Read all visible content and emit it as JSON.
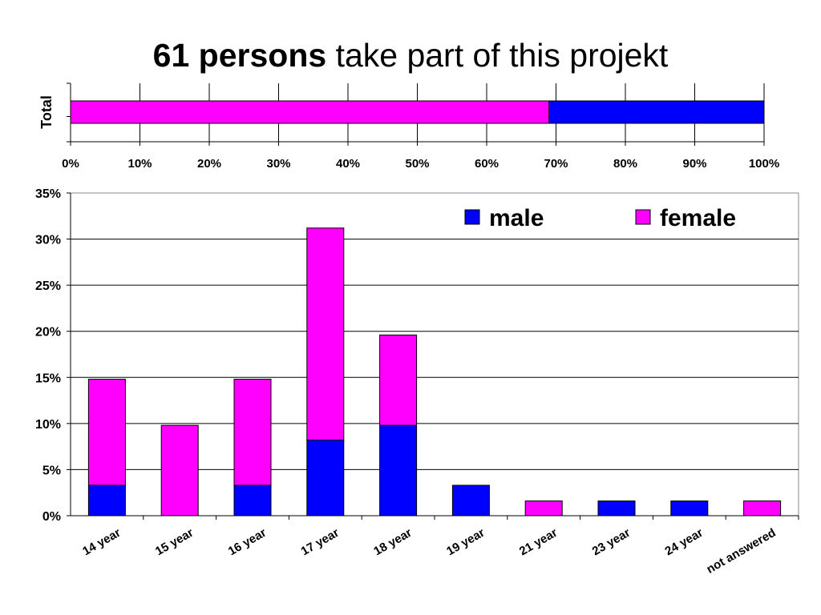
{
  "title": {
    "bold": "61 persons",
    "rest": " take part of this projekt"
  },
  "colors": {
    "male": "#0000ff",
    "female": "#ff00ff"
  },
  "chart_data": [
    {
      "type": "bar",
      "orientation": "horizontal",
      "stacked": true,
      "percent_stacked": true,
      "categories": [
        "Total"
      ],
      "ylabel": "Total",
      "xlim": [
        0,
        100
      ],
      "x_ticks": [
        "0%",
        "10%",
        "20%",
        "30%",
        "40%",
        "50%",
        "60%",
        "70%",
        "80%",
        "90%",
        "100%"
      ],
      "series": [
        {
          "name": "female",
          "values": [
            69
          ],
          "color": "#ff00ff"
        },
        {
          "name": "male",
          "values": [
            31
          ],
          "color": "#0000ff"
        }
      ],
      "grid": true
    },
    {
      "type": "bar",
      "stacked": true,
      "categories": [
        "14 year",
        "15 year",
        "16 year",
        "17 year",
        "18 year",
        "19 year",
        "21 year",
        "23 year",
        "24 year",
        "not answered"
      ],
      "series": [
        {
          "name": "male",
          "values": [
            3.3,
            0,
            3.3,
            8.2,
            9.8,
            3.3,
            0,
            1.6,
            1.6,
            0
          ],
          "color": "#0000ff"
        },
        {
          "name": "female",
          "values": [
            11.5,
            9.8,
            11.5,
            23.0,
            9.8,
            0,
            1.6,
            0,
            0,
            1.6
          ],
          "color": "#ff00ff"
        }
      ],
      "ylim": [
        0,
        35
      ],
      "y_ticks": [
        "0%",
        "5%",
        "10%",
        "15%",
        "20%",
        "25%",
        "30%",
        "35%"
      ],
      "legend": {
        "position": "top-right",
        "items": [
          "male",
          "female"
        ]
      },
      "grid": true
    }
  ]
}
